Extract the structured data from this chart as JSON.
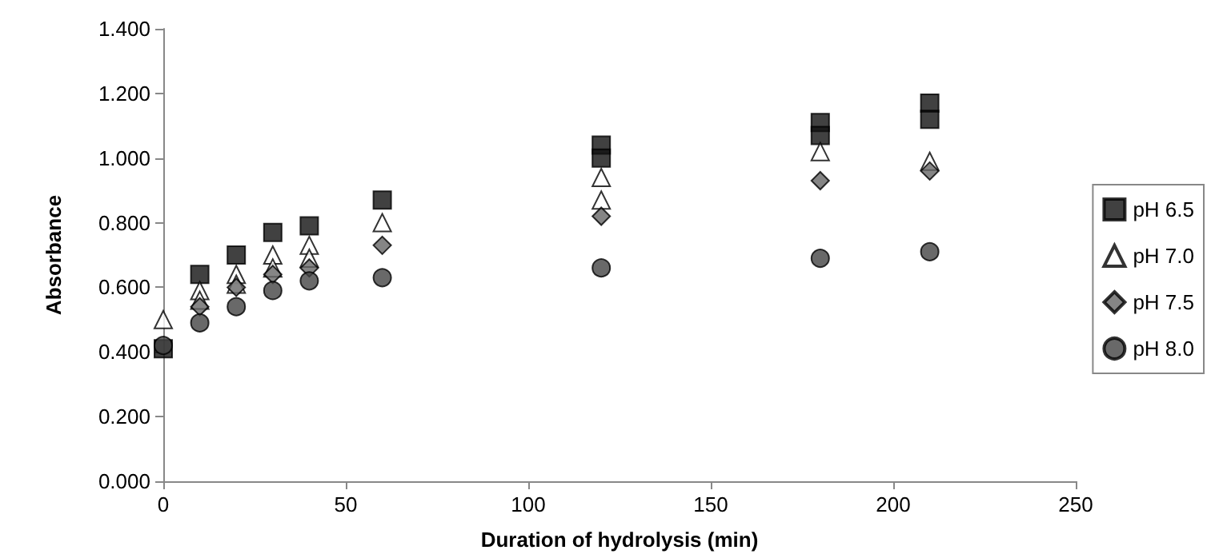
{
  "chart_data": {
    "type": "scatter",
    "xlabel": "Duration of hydrolysis (min)",
    "ylabel": "Absorbance",
    "xlim": [
      0,
      250
    ],
    "xticks": [
      0,
      50,
      100,
      150,
      200,
      250
    ],
    "ylim": [
      0,
      1.4
    ],
    "yticks": [
      {
        "value": 0,
        "label": "0.000"
      },
      {
        "value": 0.2,
        "label": "0.200"
      },
      {
        "value": 0.4,
        "label": "0.400"
      },
      {
        "value": 0.6,
        "label": "0.600"
      },
      {
        "value": 0.8,
        "label": "0.800"
      },
      {
        "value": 1,
        "label": "1.000"
      },
      {
        "value": 1.2,
        "label": "1.200"
      },
      {
        "value": 1.4,
        "label": "1.400"
      }
    ],
    "grid": false,
    "legend": "right",
    "series": [
      {
        "name": "pH 6.5",
        "color": "#111111",
        "marker": "square",
        "x": [
          0,
          10,
          20,
          30,
          40,
          60,
          120,
          120,
          180,
          180,
          210,
          210
        ],
        "values": [
          0.41,
          0.64,
          0.7,
          0.77,
          0.79,
          0.87,
          1.04,
          1.0,
          1.11,
          1.07,
          1.17,
          1.12
        ]
      },
      {
        "name": "pH 7.0",
        "color": "#ffffff",
        "marker": "triangle",
        "x": [
          0,
          10,
          10,
          20,
          20,
          30,
          30,
          40,
          40,
          60,
          120,
          120,
          180,
          210
        ],
        "values": [
          0.5,
          0.59,
          0.56,
          0.64,
          0.61,
          0.7,
          0.66,
          0.73,
          0.69,
          0.8,
          0.94,
          0.87,
          1.02,
          0.99
        ]
      },
      {
        "name": "pH 7.5",
        "color": "#666666",
        "marker": "diamond",
        "x": [
          10,
          20,
          30,
          40,
          60,
          120,
          180,
          210
        ],
        "values": [
          0.54,
          0.6,
          0.64,
          0.66,
          0.73,
          0.82,
          0.93,
          0.96
        ]
      },
      {
        "name": "pH 8.0",
        "color": "#444444",
        "marker": "circle",
        "x": [
          0,
          10,
          20,
          30,
          40,
          60,
          120,
          180,
          210
        ],
        "values": [
          0.42,
          0.49,
          0.54,
          0.59,
          0.62,
          0.63,
          0.66,
          0.69,
          0.71
        ]
      }
    ]
  }
}
